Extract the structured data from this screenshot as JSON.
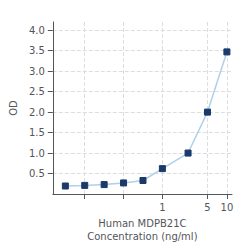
{
  "chart_data": {
    "type": "line",
    "x": [
      0.0313,
      0.0625,
      0.125,
      0.25,
      0.5,
      1.0,
      2.5,
      5.0,
      10.0
    ],
    "values": [
      0.195,
      0.21,
      0.23,
      0.27,
      0.33,
      0.62,
      1.0,
      2.0,
      3.47
    ],
    "xlabel": "Human MDPB21C\nConcentration (ng/ml)",
    "ylabel": "OD",
    "log": "x",
    "xlim": [
      0.02,
      12
    ],
    "xticks": [
      {
        "value": 0.0625,
        "label": null
      },
      {
        "value": 0.25,
        "label": null
      },
      1,
      5,
      10
    ],
    "ylim": [
      0.0,
      4.2
    ],
    "yticks": [
      0.5,
      {
        "value": 1.0,
        "label": "1.0"
      },
      1.5,
      {
        "value": 2.0,
        "label": "2.0"
      },
      2.5,
      {
        "value": 3.0,
        "label": "3.0"
      },
      3.5,
      {
        "value": 4.0,
        "label": "4.0"
      }
    ],
    "grid": true,
    "color": "#b0cfe8",
    "colors": [
      "#1a3a6b",
      "#1a3a6b",
      "#1a3a6b",
      "#1a3a6b",
      "#1a3a6b",
      "#1a3a6b",
      "#1a3a6b",
      "#1a3a6b",
      "#1a3a6b"
    ],
    "marker": "square"
  }
}
